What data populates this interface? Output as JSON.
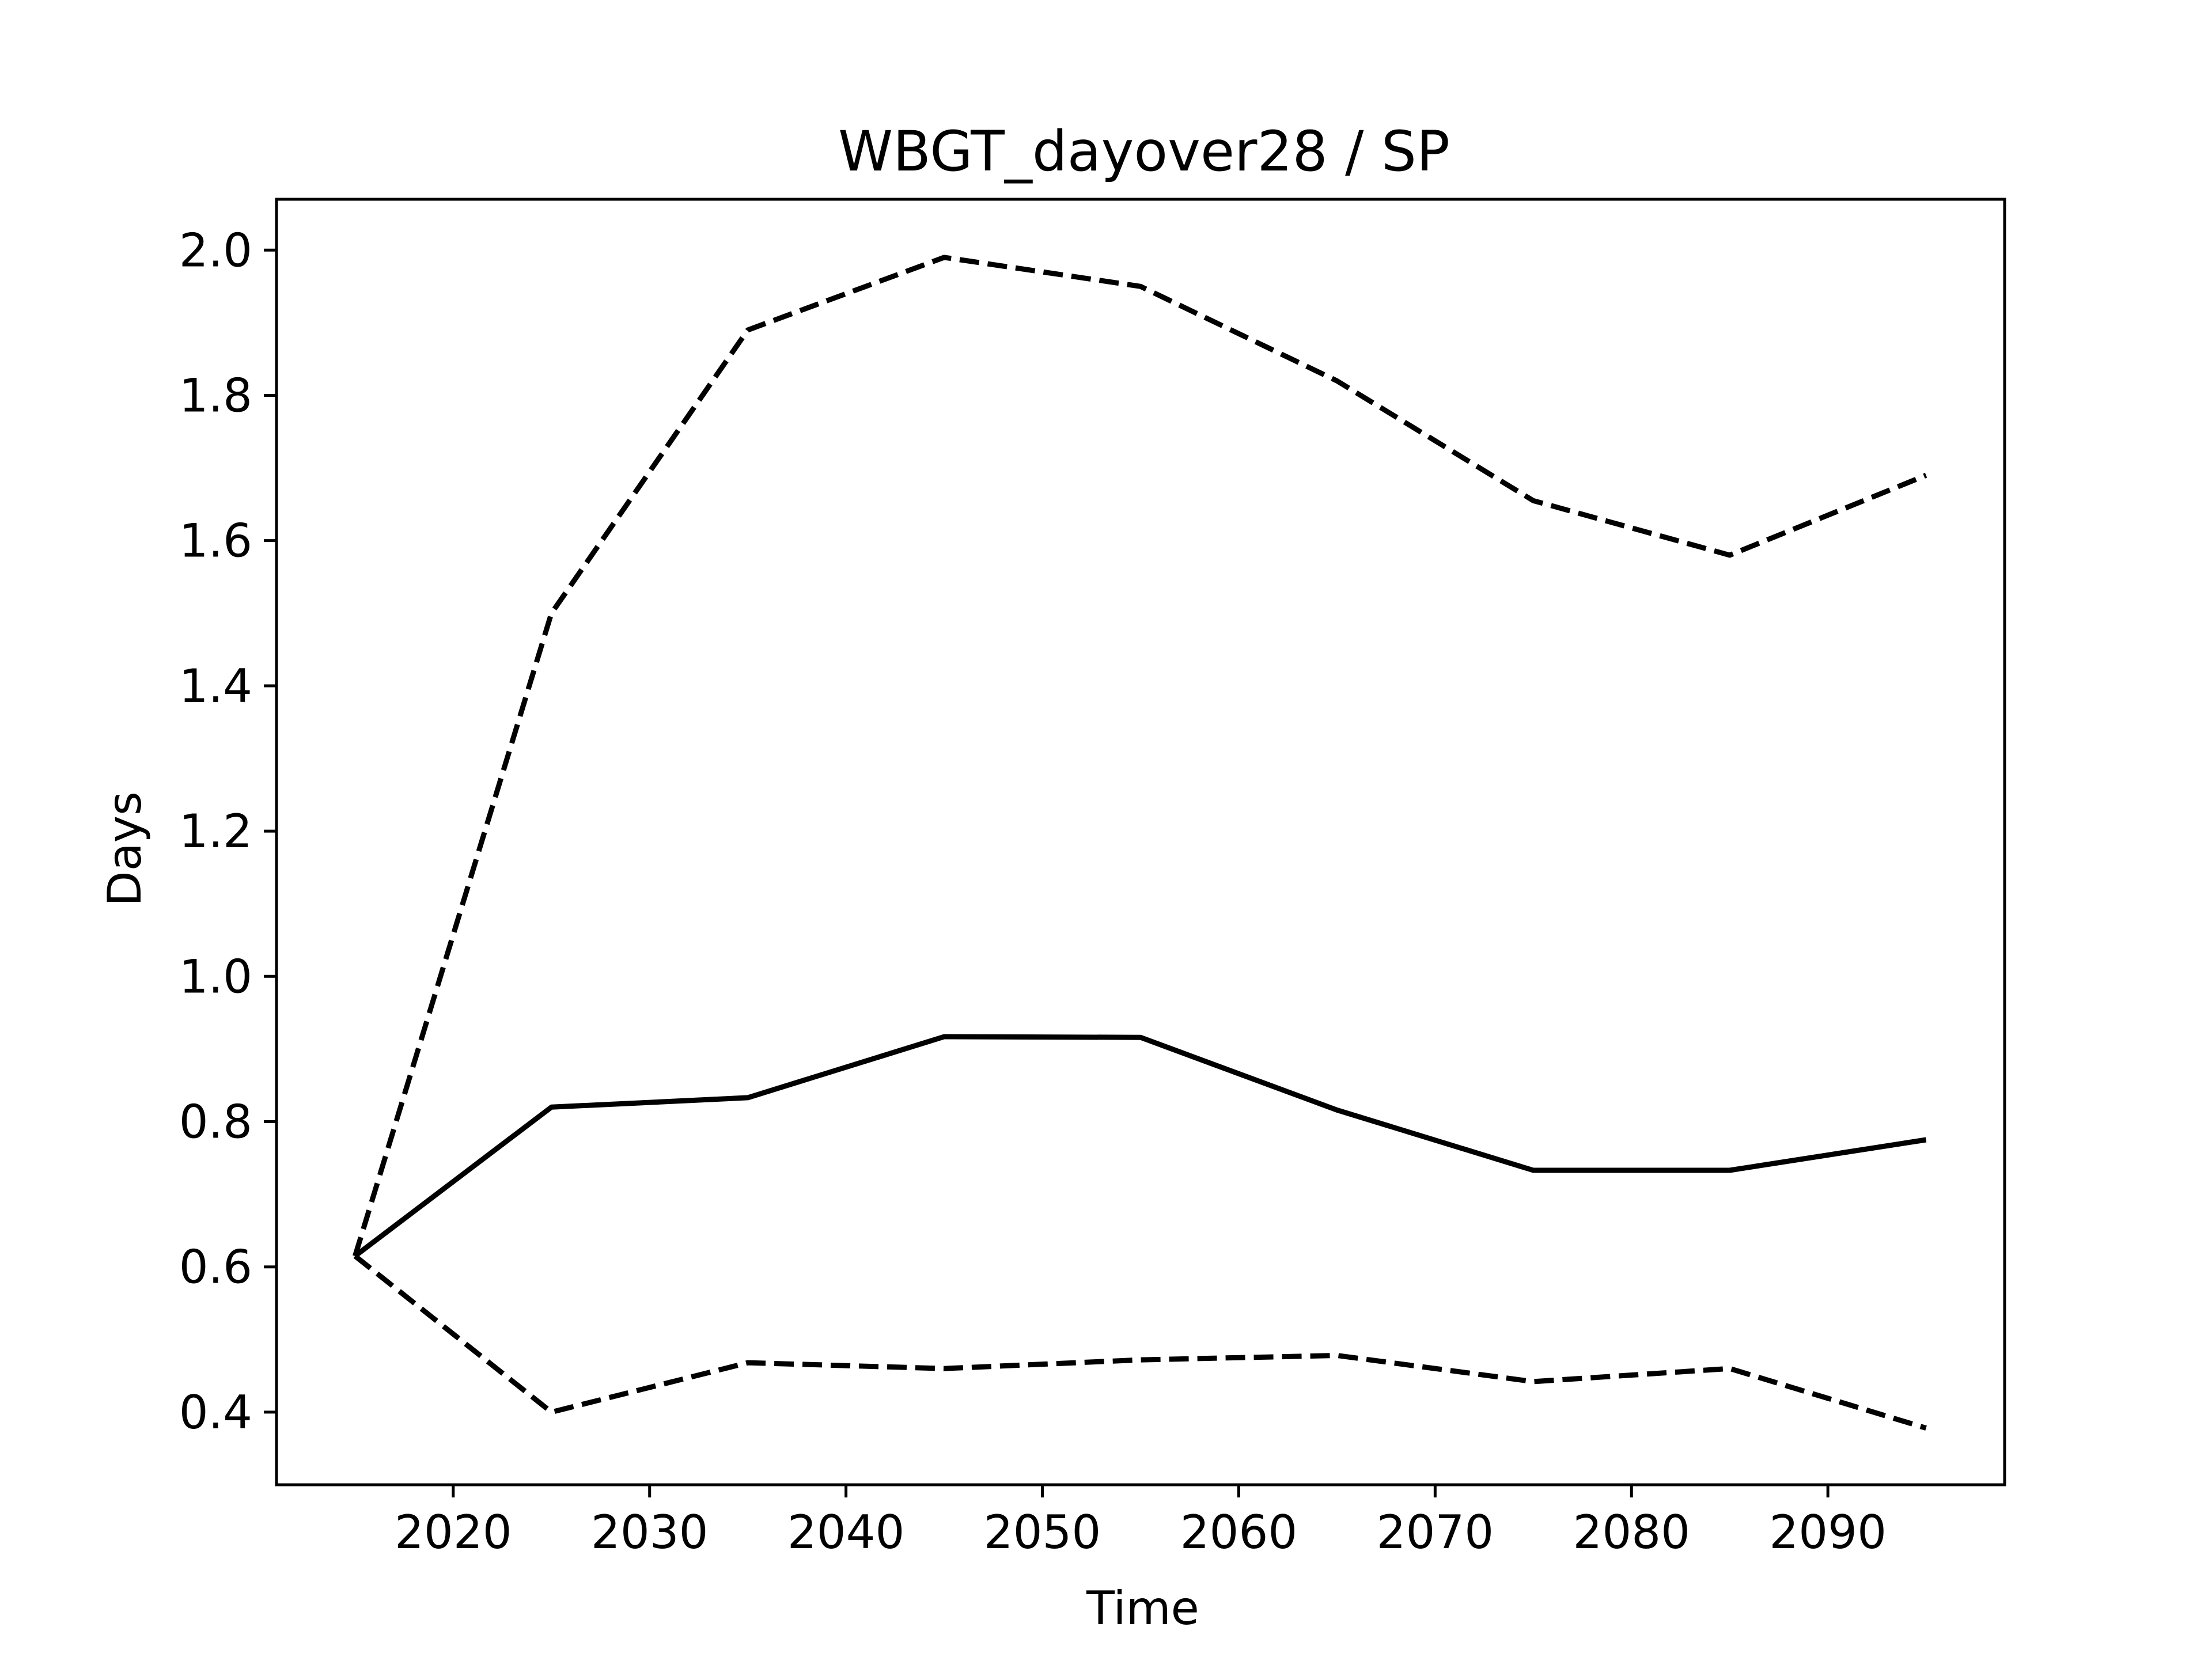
{
  "chart_data": {
    "type": "line",
    "title": "WBGT_dayover28 / SP",
    "xlabel": "Time",
    "ylabel": "Days",
    "xlim": [
      2011,
      2099
    ],
    "ylim": [
      0.3,
      2.07
    ],
    "xticks": [
      2020,
      2030,
      2040,
      2050,
      2060,
      2070,
      2080,
      2090
    ],
    "yticks": [
      0.4,
      0.6,
      0.8,
      1.0,
      1.2,
      1.4,
      1.6,
      1.8,
      2.0
    ],
    "xtick_labels": [
      "2020",
      "2030",
      "2040",
      "2050",
      "2060",
      "2070",
      "2080",
      "2090"
    ],
    "ytick_labels": [
      "0.4",
      "0.6",
      "0.8",
      "1.0",
      "1.2",
      "1.4",
      "1.6",
      "1.8",
      "2.0"
    ],
    "grid": false,
    "x": [
      2015,
      2025,
      2035,
      2045,
      2055,
      2065,
      2075,
      2085,
      2095
    ],
    "series": [
      {
        "style": "dashed",
        "color": "#000000",
        "values": [
          0.615,
          1.5,
          1.89,
          1.99,
          1.95,
          1.82,
          1.655,
          1.58,
          1.69
        ]
      },
      {
        "style": "solid",
        "color": "#000000",
        "values": [
          0.615,
          0.82,
          0.833,
          0.917,
          0.916,
          0.816,
          0.733,
          0.733,
          0.775
        ]
      },
      {
        "style": "dashed",
        "color": "#000000",
        "values": [
          0.615,
          0.4,
          0.468,
          0.46,
          0.472,
          0.478,
          0.442,
          0.46,
          0.378
        ]
      }
    ]
  }
}
